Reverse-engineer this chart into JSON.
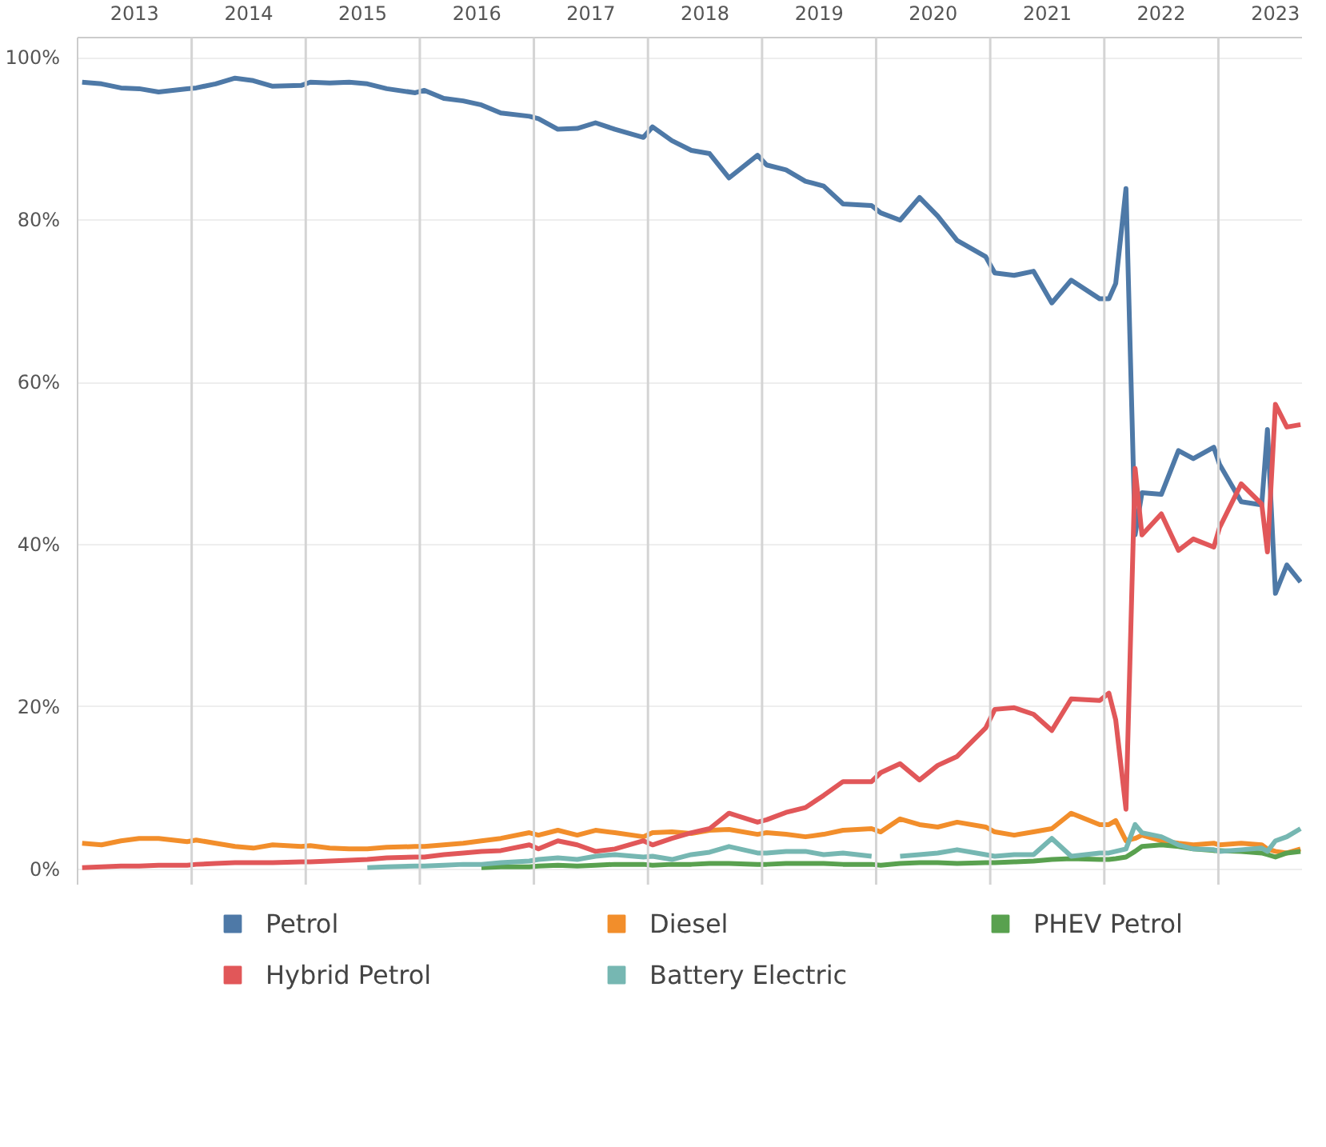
{
  "chart_data": {
    "type": "line",
    "x": [
      2013.04,
      2013.21,
      2013.38,
      2013.54,
      2013.71,
      2013.96,
      2014.04,
      2014.21,
      2014.38,
      2014.54,
      2014.71,
      2014.96,
      2015.04,
      2015.21,
      2015.38,
      2015.54,
      2015.71,
      2015.96,
      2016.04,
      2016.21,
      2016.38,
      2016.54,
      2016.71,
      2016.96,
      2017.04,
      2017.21,
      2017.38,
      2017.54,
      2017.71,
      2017.96,
      2018.04,
      2018.21,
      2018.38,
      2018.54,
      2018.71,
      2018.96,
      2019.04,
      2019.21,
      2019.38,
      2019.54,
      2019.71,
      2019.96,
      2020.04,
      2020.21,
      2020.38,
      2020.54,
      2020.71,
      2020.96,
      2021.04,
      2021.21,
      2021.38,
      2021.54,
      2021.71,
      2021.96,
      2022.04,
      2022.1,
      2022.19,
      2022.27,
      2022.33,
      2022.5,
      2022.65,
      2022.78,
      2022.96,
      2023.01,
      2023.2,
      2023.38,
      2023.43,
      2023.5,
      2023.6,
      2023.72
    ],
    "series": [
      {
        "name": "Petrol",
        "color": "#4e79a7",
        "values": [
          97.0,
          96.8,
          96.3,
          96.2,
          95.8,
          96.2,
          96.3,
          96.8,
          97.5,
          97.2,
          96.5,
          96.6,
          97,
          96.9,
          97,
          96.8,
          96.2,
          95.7,
          96,
          95,
          94.7,
          94.2,
          93.2,
          92.8,
          92.5,
          91.2,
          91.3,
          92,
          91.2,
          90.2,
          91.5,
          89.8,
          88.6,
          88.2,
          85.2,
          88,
          86.8,
          86.2,
          84.8,
          84.2,
          82,
          81.8,
          80.9,
          80,
          82.8,
          80.5,
          77.5,
          75.5,
          73.5,
          73.2,
          73.7,
          69.8,
          72.6,
          70.3,
          70.3,
          72.2,
          83.9,
          41.2,
          46.4,
          46.2,
          51.6,
          50.6,
          52,
          49.9,
          45.3,
          44.9,
          54.2,
          34,
          37.5,
          35.4
        ]
      },
      {
        "name": "Diesel",
        "color": "#f28e2b",
        "values": [
          3.2,
          3,
          3.5,
          3.8,
          3.8,
          3.4,
          3.6,
          3.2,
          2.8,
          2.6,
          3,
          2.8,
          2.9,
          2.6,
          2.5,
          2.5,
          2.7,
          2.8,
          2.8,
          3,
          3.2,
          3.5,
          3.8,
          4.5,
          4.2,
          4.8,
          4.2,
          4.8,
          4.5,
          4,
          4.5,
          4.6,
          4.4,
          4.8,
          4.9,
          4.3,
          4.5,
          4.3,
          4,
          4.3,
          4.8,
          5,
          4.6,
          6.2,
          5.5,
          5.2,
          5.8,
          5.2,
          4.6,
          4.2,
          4.6,
          5,
          6.9,
          5.5,
          5.5,
          6,
          3.5,
          3.8,
          4.2,
          3.5,
          3.2,
          3,
          3.2,
          3,
          3.2,
          3,
          2.5,
          2.2,
          2,
          2.5
        ]
      },
      {
        "name": "PHEV Petrol",
        "color": "#59a14f",
        "values": [
          null,
          null,
          null,
          null,
          null,
          null,
          null,
          null,
          null,
          null,
          null,
          null,
          null,
          null,
          null,
          null,
          null,
          null,
          null,
          null,
          null,
          0.2,
          0.3,
          0.3,
          0.4,
          0.5,
          0.4,
          0.5,
          0.6,
          0.6,
          0.5,
          0.6,
          0.6,
          0.7,
          0.7,
          0.6,
          0.6,
          0.7,
          0.7,
          0.7,
          0.6,
          0.6,
          0.5,
          0.7,
          0.8,
          0.8,
          0.7,
          0.8,
          0.8,
          0.9,
          1,
          1.2,
          1.3,
          1.2,
          1.2,
          1.3,
          1.5,
          2.2,
          2.8,
          3,
          2.8,
          2.5,
          2.3,
          2.3,
          2.2,
          2,
          1.8,
          1.5,
          2,
          2.2
        ]
      },
      {
        "name": "Hybrid Petrol",
        "color": "#e15759",
        "values": [
          0.2,
          0.3,
          0.4,
          0.4,
          0.5,
          0.5,
          0.6,
          0.7,
          0.8,
          0.8,
          0.8,
          0.9,
          0.9,
          1,
          1.1,
          1.2,
          1.4,
          1.5,
          1.5,
          1.8,
          2,
          2.2,
          2.3,
          3,
          2.5,
          3.5,
          3,
          2.2,
          2.5,
          3.5,
          3,
          3.8,
          4.5,
          5,
          6.9,
          5.8,
          6.1,
          7,
          7.6,
          9.1,
          10.8,
          10.8,
          11.9,
          13,
          11,
          12.8,
          13.9,
          17.4,
          19.7,
          19.9,
          19.1,
          17.1,
          21,
          20.8,
          21.7,
          18.4,
          7.4,
          49.4,
          41.2,
          43.8,
          39.3,
          40.7,
          39.7,
          42.1,
          47.5,
          45,
          39.1,
          57.3,
          54.5,
          54.8
        ]
      },
      {
        "name": "Battery Electric",
        "color": "#76b7b2",
        "values": [
          null,
          null,
          null,
          null,
          null,
          null,
          null,
          null,
          null,
          null,
          null,
          null,
          null,
          null,
          null,
          0.2,
          0.3,
          0.4,
          0.4,
          0.5,
          0.6,
          0.6,
          0.8,
          1,
          1.2,
          1.4,
          1.2,
          1.6,
          1.8,
          1.5,
          1.6,
          1.2,
          1.8,
          2.1,
          2.8,
          2,
          2,
          2.2,
          2.2,
          1.8,
          2,
          1.6,
          null,
          1.6,
          1.8,
          2,
          2.4,
          1.8,
          1.6,
          1.8,
          1.8,
          3.8,
          1.6,
          2,
          2,
          2.2,
          2.5,
          5.5,
          4.5,
          4,
          3,
          2.5,
          2.4,
          2.2,
          2.4,
          2.6,
          2.2,
          3.5,
          4,
          5
        ]
      }
    ],
    "xlim": [
      2013,
      2023.74
    ],
    "xticks": [
      {
        "value": 2013.5,
        "label": "2013"
      },
      {
        "value": 2014.5,
        "label": "2014"
      },
      {
        "value": 2015.5,
        "label": "2015"
      },
      {
        "value": 2016.5,
        "label": "2016"
      },
      {
        "value": 2017.5,
        "label": "2017"
      },
      {
        "value": 2018.5,
        "label": "2018"
      },
      {
        "value": 2019.5,
        "label": "2019"
      },
      {
        "value": 2020.5,
        "label": "2020"
      },
      {
        "value": 2021.5,
        "label": "2021"
      },
      {
        "value": 2022.5,
        "label": "2022"
      },
      {
        "value": 2023.5,
        "label": "2023"
      }
    ],
    "ylim": [
      -2,
      102.5
    ],
    "yticks": [
      {
        "value": 0,
        "label": "0%"
      },
      {
        "value": 20,
        "label": "20%"
      },
      {
        "value": 40,
        "label": "40%"
      },
      {
        "value": 60,
        "label": "60%"
      },
      {
        "value": 80,
        "label": "80%"
      },
      {
        "value": 100,
        "label": "100%"
      }
    ],
    "ref_lines": [
      {
        "axis": "x",
        "value": 2014,
        "color": "#d4d4d4"
      },
      {
        "axis": "x",
        "value": 2015,
        "color": "#d4d4d4"
      },
      {
        "axis": "x",
        "value": 2016,
        "color": "#d4d4d4"
      },
      {
        "axis": "x",
        "value": 2017,
        "color": "#d4d4d4"
      },
      {
        "axis": "x",
        "value": 2018,
        "color": "#d4d4d4"
      },
      {
        "axis": "x",
        "value": 2019,
        "color": "#d4d4d4"
      },
      {
        "axis": "x",
        "value": 2020,
        "color": "#d4d4d4"
      },
      {
        "axis": "x",
        "value": 2021,
        "color": "#d4d4d4"
      },
      {
        "axis": "x",
        "value": 2022,
        "color": "#d4d4d4"
      },
      {
        "axis": "x",
        "value": 2023,
        "color": "#d4d4d4"
      }
    ],
    "grid": "y",
    "legend": "bottom",
    "line_style": "solid"
  }
}
